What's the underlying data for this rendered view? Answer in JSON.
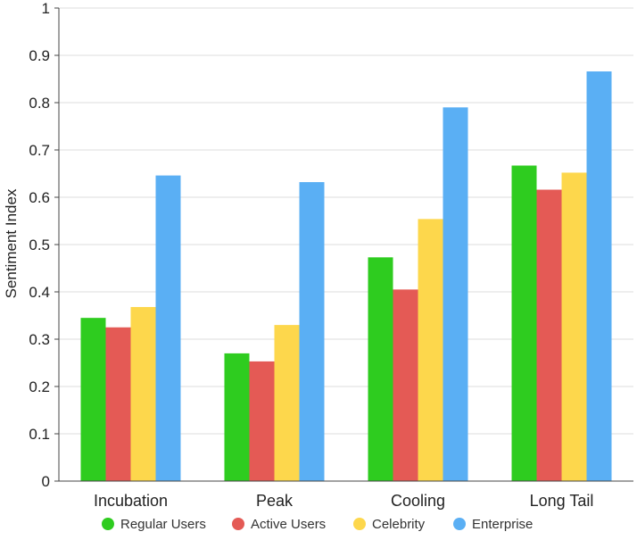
{
  "chart_data": {
    "type": "bar",
    "title": "",
    "xlabel": "",
    "ylabel": "Sentiment Index",
    "ylim": [
      0,
      1
    ],
    "yticks": [
      "0",
      "0.1",
      "0.2",
      "0.3",
      "0.4",
      "0.5",
      "0.6",
      "0.7",
      "0.8",
      "0.9",
      "1"
    ],
    "grid": true,
    "legend_position": "bottom",
    "categories": [
      "Incubation",
      "Peak",
      "Cooling",
      "Long Tail"
    ],
    "series": [
      {
        "name": "Regular Users",
        "color": "#2ecc1f",
        "values": [
          0.345,
          0.27,
          0.473,
          0.667
        ]
      },
      {
        "name": "Active Users",
        "color": "#e45a55",
        "values": [
          0.325,
          0.253,
          0.405,
          0.616
        ]
      },
      {
        "name": "Celebrity",
        "color": "#fdd74c",
        "values": [
          0.368,
          0.33,
          0.554,
          0.652
        ]
      },
      {
        "name": "Enterprise",
        "color": "#5aaff4",
        "values": [
          0.646,
          0.632,
          0.79,
          0.866
        ]
      }
    ]
  }
}
